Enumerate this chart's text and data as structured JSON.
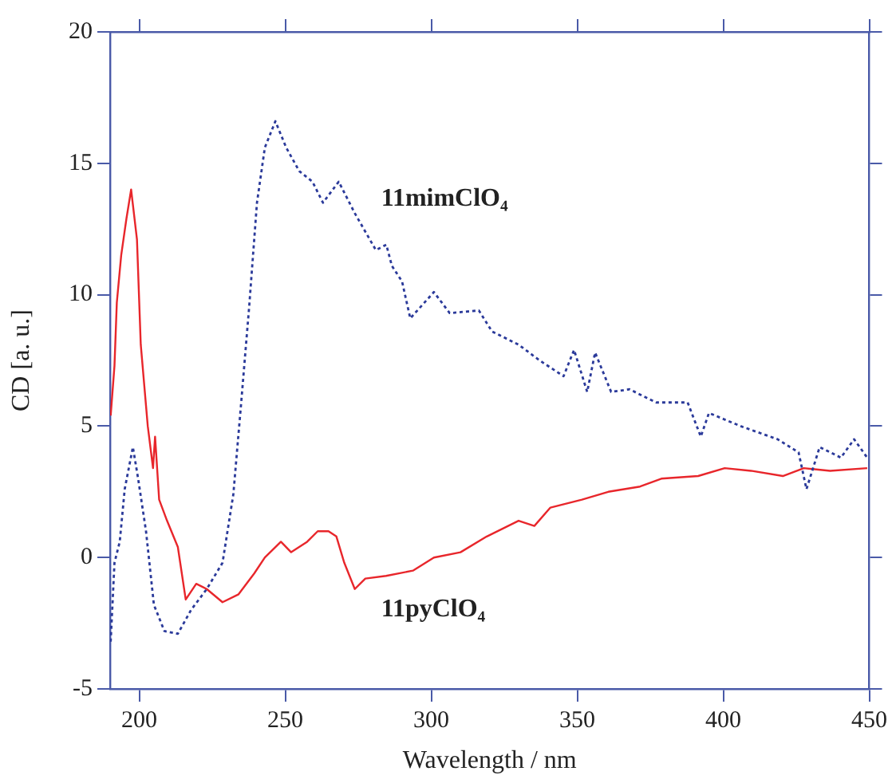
{
  "chart_data": {
    "type": "line",
    "xlabel": "Wavelength / nm",
    "ylabel": "CD [a. u.]",
    "xlim": [
      190,
      450
    ],
    "xticks": [
      200,
      250,
      300,
      350,
      400,
      450
    ],
    "ylim": [
      -5,
      20
    ],
    "yticks": [
      -5,
      0,
      5,
      10,
      15,
      20
    ],
    "grid": false,
    "legend": false,
    "marker": "none",
    "series": [
      {
        "name": "11mimClO₄",
        "color": "#2b3a9a",
        "line_style": "dotted",
        "x": [
          190.2,
          191.5,
          193.3,
          195,
          197.8,
          199.6,
          202.3,
          205,
          208.6,
          213.2,
          217.7,
          223.1,
          228.5,
          232.2,
          234.9,
          237.6,
          240.3,
          243,
          246.6,
          250.3,
          254.8,
          259.3,
          262.9,
          268.3,
          273.8,
          281,
          284.6,
          286.5,
          290,
          292.8,
          300.9,
          306.3,
          316.3,
          320.8,
          329.9,
          337.1,
          345.3,
          348.9,
          353.4,
          356.1,
          361.6,
          367.9,
          377,
          387.8,
          392.3,
          395.1,
          405.9,
          418.6,
          425.8,
          428.5,
          433,
          440.3,
          444.8,
          449.3
        ],
        "values": [
          -3.2,
          -0.2,
          0.6,
          2.6,
          4.2,
          3.0,
          1.0,
          -1.8,
          -2.8,
          -2.9,
          -2.0,
          -1.2,
          -0.2,
          2.4,
          5.9,
          9.5,
          13.5,
          15.6,
          16.6,
          15.6,
          14.7,
          14.3,
          13.5,
          14.3,
          13.1,
          11.7,
          11.9,
          11.1,
          10.5,
          9.1,
          10.1,
          9.3,
          9.4,
          8.6,
          8.1,
          7.5,
          6.9,
          7.9,
          6.3,
          7.8,
          6.3,
          6.4,
          5.9,
          5.9,
          4.6,
          5.5,
          5.0,
          4.5,
          4.0,
          2.6,
          4.2,
          3.8,
          4.5,
          3.8
        ]
      },
      {
        "name": "11pyClO₄",
        "color": "#e8262b",
        "line_style": "solid",
        "x": [
          190.2,
          191.5,
          192.3,
          193.8,
          195.6,
          197.2,
          199.2,
          200.5,
          202.9,
          204.7,
          205.4,
          206.8,
          209.5,
          213.2,
          215.9,
          219.5,
          223.1,
          228.5,
          234,
          239.4,
          243,
          248.5,
          252,
          257.5,
          261.1,
          264.8,
          267.5,
          270.2,
          273.8,
          277.4,
          284.5,
          293.7,
          300.9,
          310,
          319,
          329.9,
          335.3,
          340.8,
          351.6,
          360.6,
          371.5,
          378.8,
          391.4,
          400.5,
          409.5,
          420.4,
          427.6,
          436.6,
          449.3
        ],
        "values": [
          5.4,
          7.3,
          9.7,
          11.5,
          12.9,
          14.0,
          12.1,
          8.1,
          5.0,
          3.4,
          4.6,
          2.2,
          1.4,
          0.4,
          -1.6,
          -1.0,
          -1.2,
          -1.7,
          -1.4,
          -0.6,
          0,
          0.6,
          0.2,
          0.6,
          1.0,
          1.0,
          0.8,
          -0.2,
          -1.2,
          -0.8,
          -0.7,
          -0.5,
          0,
          0.2,
          0.8,
          1.4,
          1.2,
          1.9,
          2.2,
          2.5,
          2.7,
          3.0,
          3.1,
          3.4,
          3.3,
          3.1,
          3.4,
          3.3,
          3.4
        ]
      }
    ]
  }
}
